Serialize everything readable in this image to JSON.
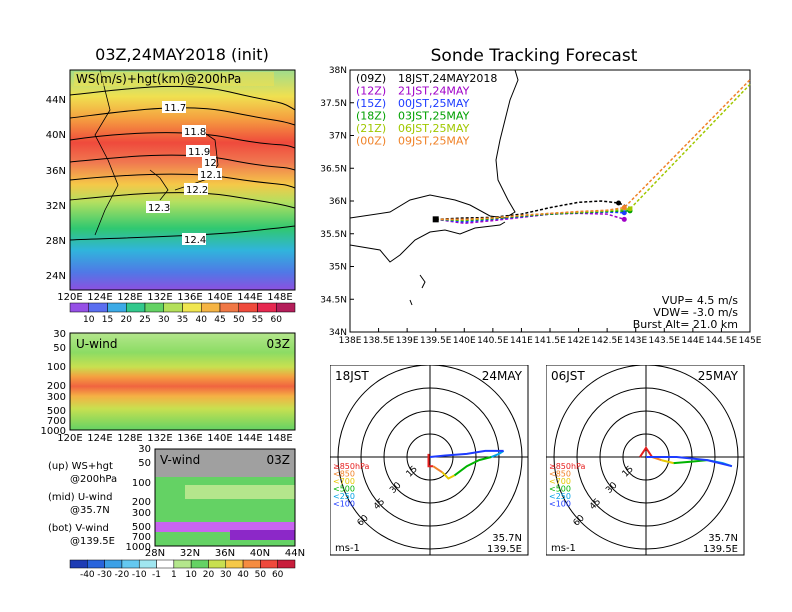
{
  "left": {
    "title": "03Z,24MAY2018 (init)",
    "map_label": "WS(m/s)+hgt(km)@200hPa",
    "lat_labels": [
      "44N",
      "40N",
      "36N",
      "32N",
      "28N",
      "24N"
    ],
    "lon_labels": [
      "120E",
      "124E",
      "128E",
      "132E",
      "136E",
      "140E",
      "144E",
      "148E"
    ],
    "hgt_labels": [
      "11.7",
      "11.8",
      "11.9",
      "12",
      "12.1",
      "12.2",
      "12.3",
      "12.4"
    ],
    "ws_colorbar": [
      "10",
      "15",
      "20",
      "25",
      "30",
      "35",
      "40",
      "45",
      "50",
      "55",
      "60"
    ],
    "uwind_label": "U-wind",
    "uwind_time": "03Z",
    "pressure_labels": [
      "30",
      "50",
      "100",
      "200",
      "300",
      "500",
      "700",
      "1000"
    ],
    "vwind_label": "V-wind",
    "vwind_time": "03Z",
    "vwind_lat_labels": [
      "28N",
      "32N",
      "36N",
      "40N",
      "44N"
    ],
    "wind_colorbar": [
      "-40",
      "-30",
      "-20",
      "-10",
      "-1",
      "1",
      "10",
      "20",
      "30",
      "40",
      "50",
      "60"
    ],
    "legend": {
      "up_1": "(up) WS+hgt",
      "up_2": "@200hPa",
      "mid_1": "(mid) U-wind",
      "mid_2": "@35.7N",
      "bot_1": "(bot) V-wind",
      "bot_2": "@139.5E"
    }
  },
  "track": {
    "title": "Sonde Tracking Forecast",
    "lat_labels": [
      "38N",
      "37.5N",
      "37N",
      "36.5N",
      "36N",
      "35.5N",
      "35N",
      "34.5N",
      "34N"
    ],
    "lon_labels": [
      "138E",
      "138.5E",
      "139E",
      "139.5E",
      "140E",
      "140.5E",
      "141E",
      "141.5E",
      "142E",
      "142.5E",
      "143E",
      "143.5E",
      "144E",
      "144.5E",
      "145E"
    ],
    "legend": [
      {
        "tag": "(09Z)",
        "label": "18JST,24MAY2018",
        "color": "#000000"
      },
      {
        "tag": "(12Z)",
        "label": "21JST,24MAY",
        "color": "#a000c8"
      },
      {
        "tag": "(15Z)",
        "label": "00JST,25MAY",
        "color": "#1e3cff"
      },
      {
        "tag": "(18Z)",
        "label": "03JST,25MAY",
        "color": "#00a000"
      },
      {
        "tag": "(21Z)",
        "label": "06JST,25MAY",
        "color": "#a0c800"
      },
      {
        "tag": "(00Z)",
        "label": "09JST,25MAY",
        "color": "#f08228"
      }
    ],
    "vup": "VUP=  4.5 m/s",
    "vdw": "VDW=  -3.0 m/s",
    "burst": "Burst Alt=  21.0 km"
  },
  "hodo1": {
    "time": "18JST",
    "date": "24MAY"
  },
  "hodo2": {
    "time": "06JST",
    "date": "25MAY"
  },
  "hodo_common": {
    "rings": [
      "15",
      "30",
      "45",
      "60"
    ],
    "levels": [
      {
        "label": "≥850hPa",
        "color": "#e61e1e"
      },
      {
        "label": "<850",
        "color": "#f08228"
      },
      {
        "label": "<700",
        "color": "#e6c800"
      },
      {
        "label": "<500",
        "color": "#00b400"
      },
      {
        "label": "<250",
        "color": "#00a0e6"
      },
      {
        "label": "<100",
        "color": "#1e3cff"
      }
    ],
    "unit": "ms-1",
    "pos_lat": "35.7N",
    "pos_lon": "139.5E"
  },
  "chart_data": [
    {
      "type": "line",
      "title": "Sonde Tracking Forecast",
      "xlabel": "",
      "ylabel": "",
      "xlim": [
        138,
        145
      ],
      "ylim": [
        34,
        38
      ],
      "series": [
        {
          "name": "(09Z) 18JST,24MAY2018",
          "color": "#000000",
          "x": [
            139.5,
            140.0,
            140.5,
            141.0,
            141.5,
            142.0,
            142.4,
            142.7,
            142.9
          ],
          "y": [
            35.72,
            35.74,
            35.75,
            35.8,
            35.9,
            35.98,
            36.0,
            35.97,
            35.9
          ]
        },
        {
          "name": "(12Z) 21JST,24MAY",
          "color": "#a000c8",
          "x": [
            139.5,
            140.0,
            140.5,
            141.0,
            141.5,
            142.0,
            142.5,
            142.8
          ],
          "y": [
            35.72,
            35.66,
            35.7,
            35.75,
            35.8,
            35.81,
            35.8,
            35.72
          ]
        },
        {
          "name": "(15Z) 00JST,25MAY",
          "color": "#1e3cff",
          "x": [
            139.5,
            140.0,
            140.5,
            141.0,
            141.5,
            142.0,
            142.5,
            142.8
          ],
          "y": [
            35.72,
            35.68,
            35.72,
            35.76,
            35.8,
            35.82,
            35.83,
            35.82
          ]
        },
        {
          "name": "(18Z) 03JST,25MAY",
          "color": "#00a000",
          "x": [
            139.5,
            140.0,
            140.5,
            141.0,
            141.5,
            142.0,
            142.5,
            142.9
          ],
          "y": [
            35.72,
            35.7,
            35.73,
            35.77,
            35.8,
            35.82,
            35.84,
            35.85
          ]
        },
        {
          "name": "(21Z) 06JST,25MAY",
          "color": "#a0c800",
          "x": [
            139.5,
            140.0,
            140.5,
            141.0,
            141.5,
            142.0,
            142.5,
            142.9,
            145.0
          ],
          "y": [
            35.72,
            35.71,
            35.74,
            35.78,
            35.81,
            35.83,
            35.85,
            35.88,
            37.78
          ]
        },
        {
          "name": "(00Z) 09JST,25MAY",
          "color": "#f08228",
          "x": [
            139.5,
            140.0,
            140.5,
            141.0,
            141.5,
            142.0,
            142.5,
            142.8,
            145.0
          ],
          "y": [
            35.72,
            35.72,
            35.74,
            35.78,
            35.81,
            35.84,
            35.86,
            35.9,
            37.85
          ]
        }
      ]
    },
    {
      "type": "scatter",
      "title": "18JST 24MAY",
      "series": [
        {
          "name": "≥850hPa",
          "color": "#e61e1e",
          "u": [
            -1,
            -1,
            -1,
            2
          ],
          "v": [
            2,
            -4,
            -6,
            -6
          ]
        },
        {
          "name": "<850",
          "color": "#f08228",
          "u": [
            2,
            5,
            8
          ],
          "v": [
            -6,
            -8,
            -10
          ]
        },
        {
          "name": "<700",
          "color": "#e6c800",
          "u": [
            8,
            12,
            16
          ],
          "v": [
            -10,
            -14,
            -12
          ]
        },
        {
          "name": "<500",
          "color": "#00b400",
          "u": [
            16,
            24,
            32,
            40
          ],
          "v": [
            -12,
            -6,
            -2,
            0
          ]
        },
        {
          "name": "<250",
          "color": "#00a0e6",
          "u": [
            40,
            45,
            48
          ],
          "v": [
            0,
            2,
            4
          ]
        },
        {
          "name": "<100",
          "color": "#1e3cff",
          "u": [
            48,
            36,
            24,
            10,
            0
          ],
          "v": [
            4,
            4,
            2,
            1,
            0
          ]
        }
      ]
    },
    {
      "type": "scatter",
      "title": "06JST 25MAY",
      "series": [
        {
          "name": "≥850hPa",
          "color": "#e61e1e",
          "u": [
            -4,
            0,
            4
          ],
          "v": [
            0,
            6,
            0
          ]
        },
        {
          "name": "<850",
          "color": "#f08228",
          "u": [
            4,
            10
          ],
          "v": [
            0,
            -2
          ]
        },
        {
          "name": "<700",
          "color": "#e6c800",
          "u": [
            10,
            18
          ],
          "v": [
            -2,
            -4
          ]
        },
        {
          "name": "<500",
          "color": "#00b400",
          "u": [
            18,
            30,
            40
          ],
          "v": [
            -4,
            -3,
            -2
          ]
        },
        {
          "name": "<250",
          "color": "#00a0e6",
          "u": [
            40,
            50,
            56
          ],
          "v": [
            -2,
            -4,
            -6
          ]
        },
        {
          "name": "<100",
          "color": "#1e3cff",
          "u": [
            56,
            40,
            20,
            0
          ],
          "v": [
            -6,
            -2,
            0,
            0
          ]
        }
      ]
    }
  ]
}
